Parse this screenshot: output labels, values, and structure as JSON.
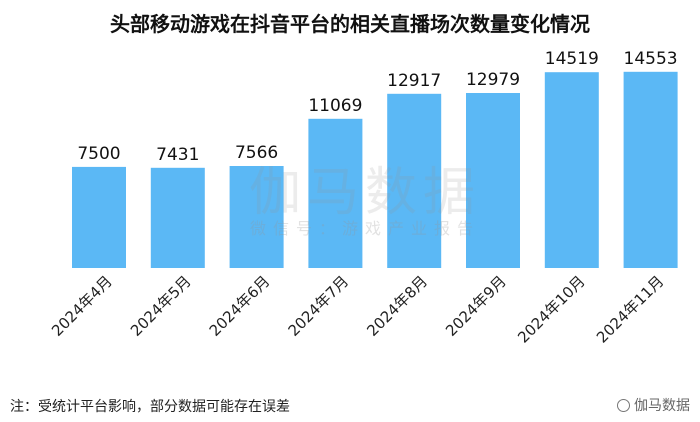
{
  "footnote": "注：受统计平台影响，部分数据可能存在误差",
  "watermark": {
    "main": "伽马数据",
    "sub": "微信号：游戏产业报告",
    "corner": "伽马数据"
  },
  "chart_data": {
    "type": "bar",
    "title": "头部移动游戏在抖音平台的相关直播场次数量变化情况",
    "categories": [
      "2024年4月",
      "2024年5月",
      "2024年6月",
      "2024年7月",
      "2024年8月",
      "2024年9月",
      "2024年10月",
      "2024年11月"
    ],
    "series": [
      {
        "values": [
          7500,
          7431,
          7566,
          11069,
          12917,
          12979,
          14519,
          14553
        ]
      }
    ],
    "ylim": [
      0,
      17800
    ],
    "bar_color": "#5bb8f5",
    "grid": false,
    "legend": "none"
  }
}
